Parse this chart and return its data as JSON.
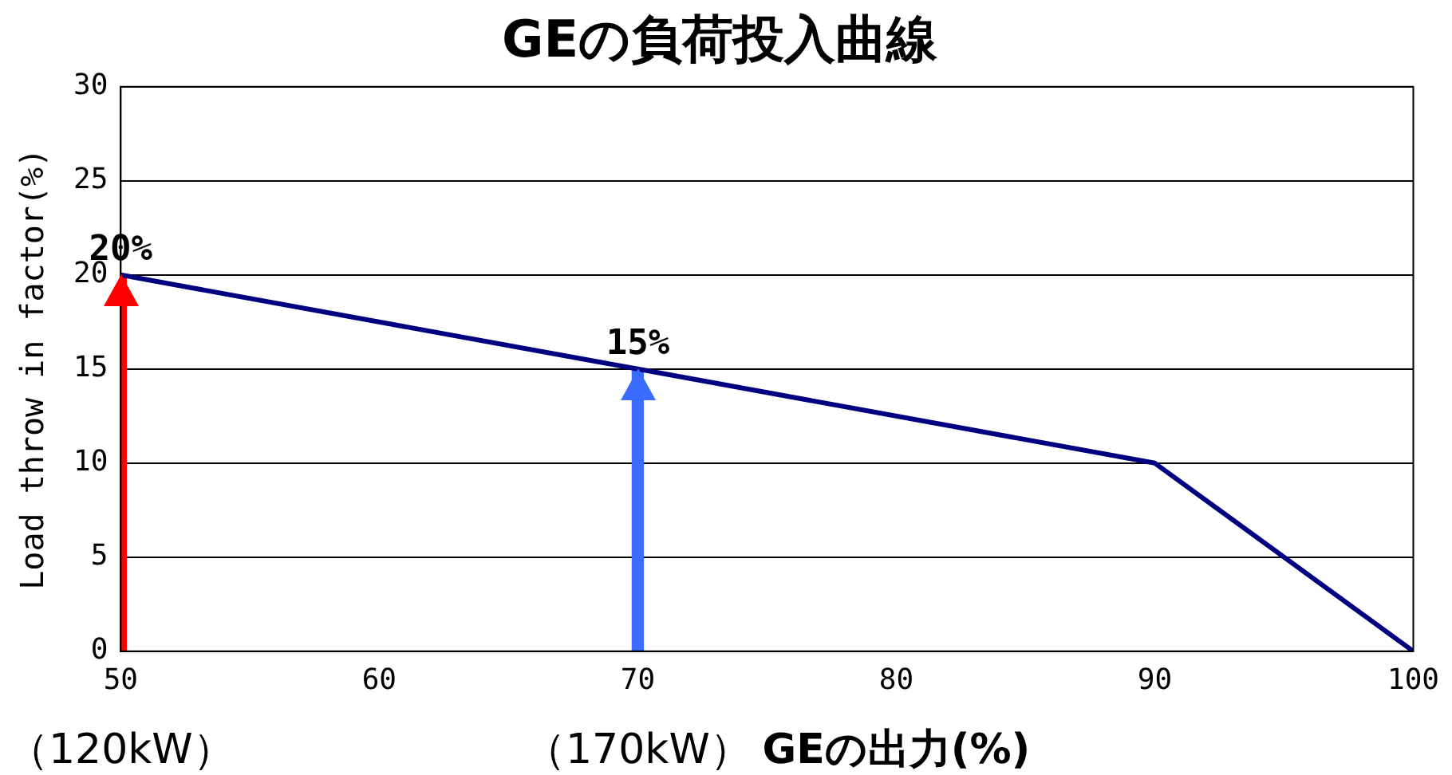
{
  "chart_data": {
    "type": "line",
    "title": "GEの負荷投入曲線",
    "xlabel": "GEの出力(%)",
    "ylabel": "Load throw in factor(%)",
    "x": [
      50,
      70,
      90,
      100
    ],
    "series": [
      {
        "color": "#000080",
        "values": [
          20,
          15,
          10,
          0
        ]
      },
      {
        "type": "bar",
        "x": [
          50,
          70
        ],
        "colors": [
          "#ff0000",
          "#3a6cff"
        ],
        "values": [
          20,
          15
        ],
        "value_labels": [
          "20%",
          "15%"
        ]
      }
    ],
    "xlim": [
      50,
      100
    ],
    "xticks": [
      50,
      60,
      70,
      80,
      90,
      100
    ],
    "ylim": [
      0,
      30
    ],
    "yticks": [
      0,
      5,
      10,
      15,
      20,
      25,
      30
    ],
    "grid": "y",
    "marker": "none",
    "line_style": "solid",
    "annotations": [
      "（120kW）",
      "（170kW）"
    ]
  }
}
